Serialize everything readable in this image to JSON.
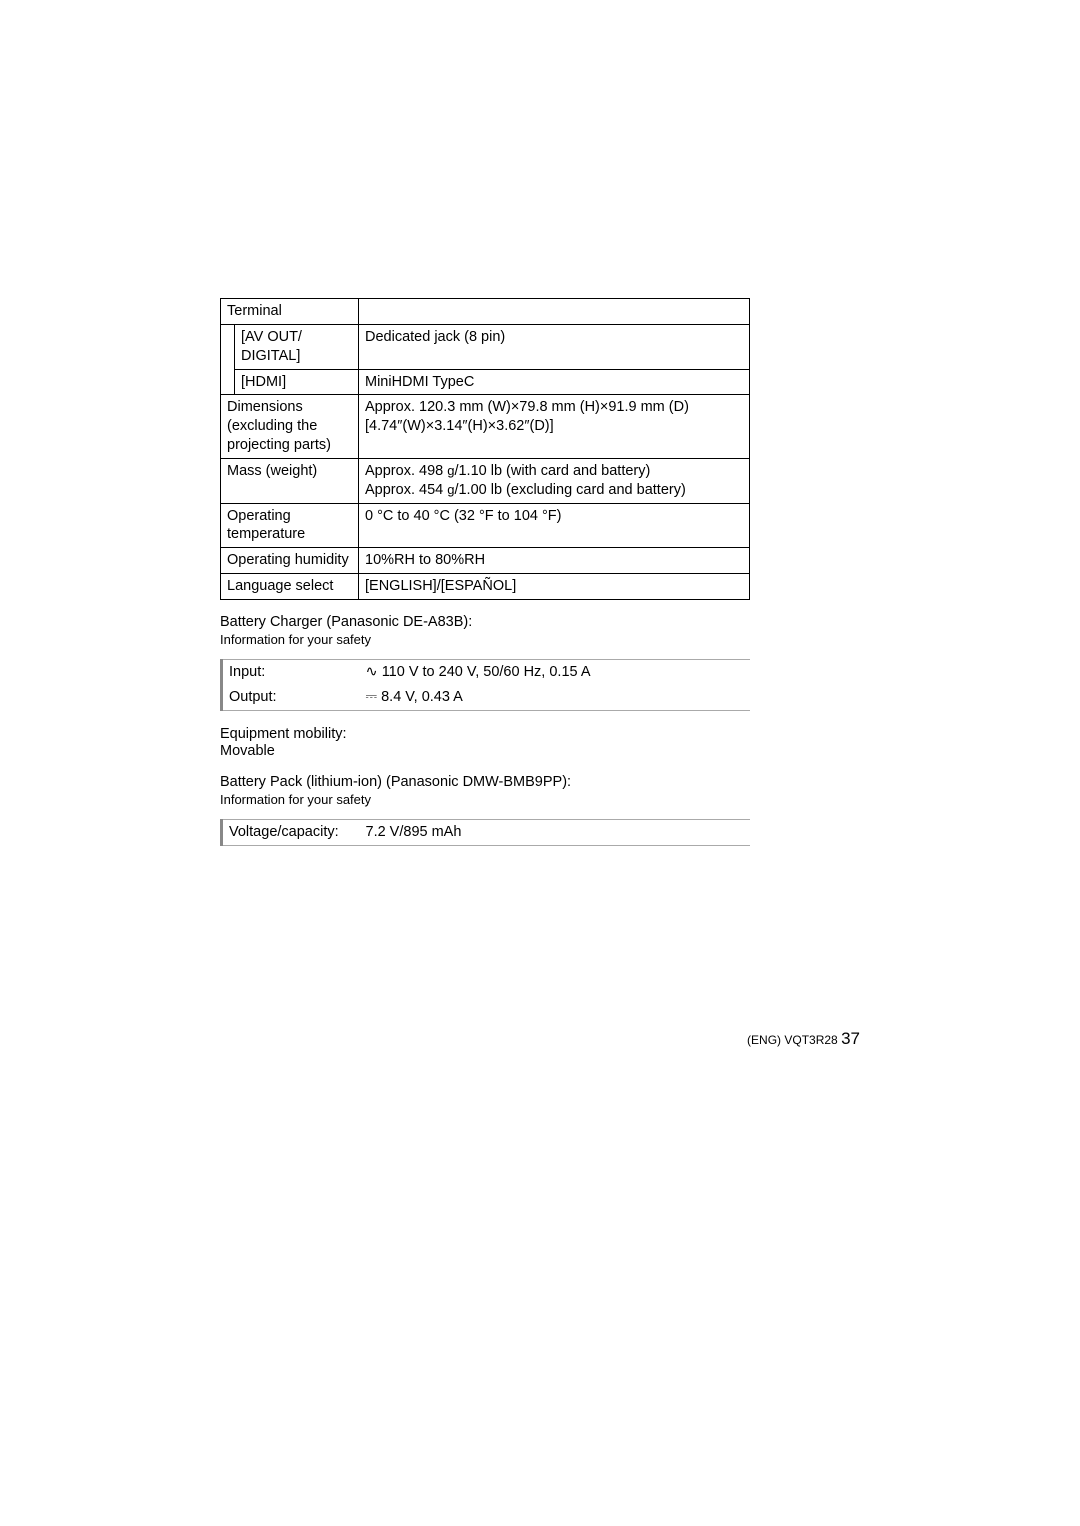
{
  "specs": {
    "terminal_header": "Terminal",
    "av_out_label": "[AV OUT/\nDIGITAL]",
    "av_out_value": "Dedicated jack (8 pin)",
    "hdmi_label": "[HDMI]",
    "hdmi_value": "MiniHDMI TypeC",
    "dimensions_label": "Dimensions (excluding the projecting parts)",
    "dimensions_value_l1": "Approx. 120.3 mm (W)×79.8 mm (H)×91.9 mm (D)",
    "dimensions_value_l2": "[4.74″(W)×3.14″(H)×3.62″(D)]",
    "mass_label": "Mass (weight)",
    "mass_value_l1a": "Approx. 498 ",
    "mass_value_l1b": "g",
    "mass_value_l1c": "/1.10 lb (with card and battery)",
    "mass_value_l2a": "Approx. 454 ",
    "mass_value_l2b": "g",
    "mass_value_l2c": "/1.00 lb (excluding card and battery)",
    "optemp_label": "Operating temperature",
    "optemp_value": "0 °C to 40 °C (32 °F to 104 °F)",
    "ophum_label": "Operating humidity",
    "ophum_value": "10%RH to 80%RH",
    "lang_label": "Language select",
    "lang_value": "[ENGLISH]/[ESPAÑOL]"
  },
  "charger": {
    "title": "Battery Charger (Panasonic DE-A83B):",
    "subtitle": "Information for your safety",
    "input_label": "Input:",
    "input_sym": "∿",
    "input_value": "110 V to 240 V, 50/60 Hz, 0.15 A",
    "output_label": "Output:",
    "output_sym": "⎓",
    "output_value": "8.4 V, 0.43 A"
  },
  "mobility": {
    "title": "Equipment mobility:",
    "value": "Movable"
  },
  "battery": {
    "title": "Battery Pack (lithium-ion) (Panasonic DMW-BMB9PP):",
    "subtitle": "Information for your safety",
    "label": "Voltage/capacity:",
    "value": "7.2 V/895 mAh"
  },
  "footer": {
    "prefix": "(ENG) VQT3R28",
    "page": "37"
  }
}
